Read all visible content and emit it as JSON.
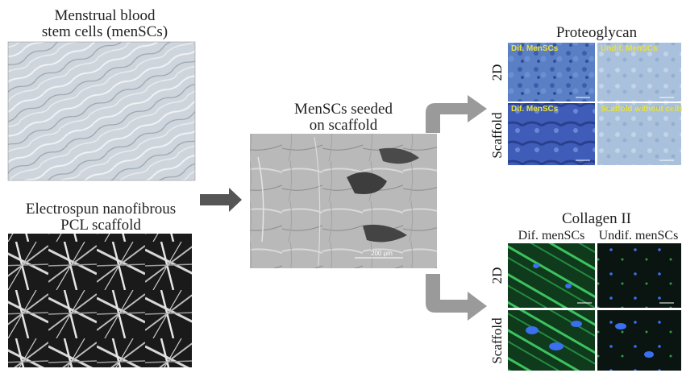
{
  "left_panels": {
    "cells_title_line1": "Menstrual blood",
    "cells_title_line2": "stem cells (menSCs)",
    "scaffold_title_line1": "Electrospun nanofibrous",
    "scaffold_title_line2": "PCL scaffold"
  },
  "center_panel": {
    "title_line1": "MenSCs seeded",
    "title_line2": "on scaffold",
    "sem_scale_label": "200 µm"
  },
  "proteoglycan": {
    "title": "Proteoglycan",
    "row_2d": "2D",
    "row_scaffold": "Scaffold",
    "tag_dif_2d": "Dif. MenSCs",
    "tag_undif_2d": "Undif. MenSCs",
    "tag_dif_scaffold": "Dif. MenSCs",
    "tag_scaffold_no_cells": "Scaffold without cells"
  },
  "collagen": {
    "title": "Collagen II",
    "col_dif": "Dif. menSCs",
    "col_undif": "Undif. menSCs",
    "row_2d": "2D",
    "row_scaffold": "Scaffold"
  },
  "colors": {
    "arrow_dark": "#555555",
    "arrow_light": "#9a9a9a",
    "stain_blue": "#3a5fb0",
    "stain_light": "#9db7d4",
    "fluor_green": "#2e9a4a",
    "nucleus_blue": "#3a6ff0"
  }
}
